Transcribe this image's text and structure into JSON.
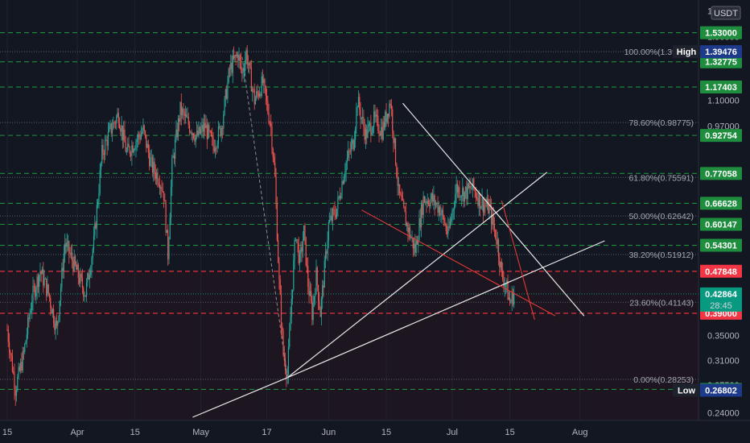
{
  "chart_data": {
    "type": "candlestick",
    "currency": "USDT",
    "y_scale": "log",
    "ylim": [
      0.235,
      1.78
    ],
    "price_tick_labels": [
      "1.70000",
      "1.50000",
      "1.10000",
      "0.97000",
      "0.35000",
      "0.31000",
      "0.27500",
      "0.24000"
    ],
    "time_tick_labels": [
      {
        "label": "15",
        "day": 0
      },
      {
        "label": "Apr",
        "day": 17
      },
      {
        "label": "15",
        "day": 31
      },
      {
        "label": "May",
        "day": 47
      },
      {
        "label": "17",
        "day": 63
      },
      {
        "label": "Jun",
        "day": 78
      },
      {
        "label": "15",
        "day": 92
      },
      {
        "label": "Jul",
        "day": 108
      },
      {
        "label": "15",
        "day": 122
      },
      {
        "label": "Aug",
        "day": 139
      }
    ],
    "series_path": [
      [
        0,
        0.36
      ],
      [
        2,
        0.27
      ],
      [
        4,
        0.32
      ],
      [
        6,
        0.42
      ],
      [
        8,
        0.48
      ],
      [
        10,
        0.43
      ],
      [
        12,
        0.36
      ],
      [
        14,
        0.55
      ],
      [
        16,
        0.5
      ],
      [
        18,
        0.45
      ],
      [
        19,
        0.43
      ],
      [
        21,
        0.55
      ],
      [
        23,
        0.85
      ],
      [
        25,
        0.95
      ],
      [
        27,
        1.03
      ],
      [
        29,
        0.85
      ],
      [
        31,
        0.9
      ],
      [
        33,
        0.95
      ],
      [
        35,
        0.8
      ],
      [
        37,
        0.75
      ],
      [
        38,
        0.7
      ],
      [
        39,
        0.52
      ],
      [
        40,
        0.8
      ],
      [
        42,
        1.05
      ],
      [
        44,
        0.98
      ],
      [
        46,
        0.92
      ],
      [
        48,
        0.97
      ],
      [
        50,
        0.88
      ],
      [
        52,
        0.97
      ],
      [
        54,
        1.28
      ],
      [
        56,
        1.38
      ],
      [
        57,
        1.25
      ],
      [
        58,
        1.39
      ],
      [
        60,
        1.1
      ],
      [
        62,
        1.2
      ],
      [
        64,
        0.97
      ],
      [
        65,
        0.75
      ],
      [
        66,
        0.45
      ],
      [
        67,
        0.32
      ],
      [
        68,
        0.29
      ],
      [
        69,
        0.42
      ],
      [
        70,
        0.58
      ],
      [
        71,
        0.5
      ],
      [
        72,
        0.58
      ],
      [
        73,
        0.45
      ],
      [
        74,
        0.39
      ],
      [
        75,
        0.47
      ],
      [
        76,
        0.39
      ],
      [
        78,
        0.6
      ],
      [
        80,
        0.65
      ],
      [
        82,
        0.8
      ],
      [
        84,
        0.9
      ],
      [
        85,
        1.1
      ],
      [
        87,
        0.93
      ],
      [
        89,
        1.0
      ],
      [
        91,
        0.95
      ],
      [
        93,
        1.1
      ],
      [
        95,
        0.7
      ],
      [
        97,
        0.6
      ],
      [
        99,
        0.53
      ],
      [
        101,
        0.68
      ],
      [
        103,
        0.68
      ],
      [
        105,
        0.65
      ],
      [
        107,
        0.57
      ],
      [
        109,
        0.72
      ],
      [
        111,
        0.7
      ],
      [
        113,
        0.72
      ],
      [
        115,
        0.67
      ],
      [
        117,
        0.65
      ],
      [
        119,
        0.55
      ],
      [
        120,
        0.47
      ],
      [
        121,
        0.45
      ],
      [
        122,
        0.41
      ],
      [
        123,
        0.43
      ]
    ],
    "fibonacci": [
      {
        "label": "100.00%(1.39476)",
        "price": 1.39476
      },
      {
        "label": "78.60%(0.98775)",
        "price": 0.98775
      },
      {
        "label": "61.80%(0.75591)",
        "price": 0.75591
      },
      {
        "label": "50.00%(0.62642)",
        "price": 0.62642
      },
      {
        "label": "38.20%(0.51912)",
        "price": 0.51912
      },
      {
        "label": "23.60%(0.41143)",
        "price": 0.41143
      },
      {
        "label": "0.00%(0.28253)",
        "price": 0.28253
      }
    ],
    "horizontal_levels": [
      {
        "label": "1.53000",
        "price": 1.53,
        "color": "#1e8e3e"
      },
      {
        "label": "1.32775",
        "price": 1.32775,
        "color": "#1e8e3e"
      },
      {
        "label": "1.17403",
        "price": 1.17403,
        "color": "#1e8e3e"
      },
      {
        "label": "0.92754",
        "price": 0.92754,
        "color": "#1e8e3e"
      },
      {
        "label": "0.77058",
        "price": 0.77058,
        "color": "#1e8e3e"
      },
      {
        "label": "0.66628",
        "price": 0.66628,
        "color": "#1e8e3e"
      },
      {
        "label": "0.60147",
        "price": 0.60147,
        "color": "#1e8e3e"
      },
      {
        "label": "0.54301",
        "price": 0.54301,
        "color": "#1e8e3e"
      },
      {
        "label": "0.47848",
        "price": 0.47848,
        "color": "#f23645"
      },
      {
        "label": "0.39000",
        "price": 0.39,
        "color": "#f23645"
      },
      {
        "label": "0.26913",
        "price": 0.26913,
        "color": "#1e8e3e"
      }
    ],
    "high": {
      "title": "High",
      "label": "1.39476",
      "price": 1.39476
    },
    "low": {
      "title": "Low",
      "label": "0.26802",
      "price": 0.26802
    },
    "current": {
      "label": "0.42864",
      "price": 0.42864,
      "countdown": "28:45",
      "color": "#089981"
    },
    "trend_lines_white": [
      [
        [
          45,
          0.235
        ],
        [
          68,
          0.285
        ],
        [
          145,
          0.555
        ]
      ],
      [
        [
          68,
          0.285
        ],
        [
          131,
          0.775
        ]
      ],
      [
        [
          96,
          1.085
        ],
        [
          140,
          0.385
        ]
      ]
    ],
    "trend_lines_red": [
      [
        [
          86,
          0.645
        ],
        [
          133,
          0.385
        ]
      ],
      [
        [
          120,
          0.675
        ],
        [
          128,
          0.378
        ]
      ]
    ],
    "dashed_drop_line": [
      [
        57,
        1.36
      ],
      [
        68,
        0.285
      ]
    ],
    "colors": {
      "background": "#131722",
      "up": "#26a69a",
      "down": "#ef5350",
      "grid": "#363a45"
    }
  }
}
